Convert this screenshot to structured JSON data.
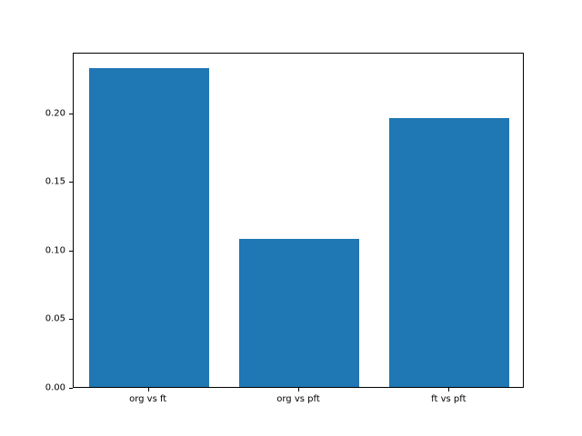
{
  "chart_data": {
    "type": "bar",
    "categories": [
      "org vs ft",
      "org vs pft",
      "ft vs pft"
    ],
    "values": [
      0.232,
      0.108,
      0.196
    ],
    "title": "",
    "xlabel": "",
    "ylabel": "",
    "ylim": [
      0,
      0.244
    ],
    "yticks": [
      0.0,
      0.05,
      0.1,
      0.15,
      0.2
    ],
    "ytick_labels": [
      "0.00",
      "0.05",
      "0.10",
      "0.15",
      "0.20"
    ],
    "bar_color": "#1f77b4",
    "bar_width_fraction": 0.8,
    "grid": false,
    "legend": null
  }
}
